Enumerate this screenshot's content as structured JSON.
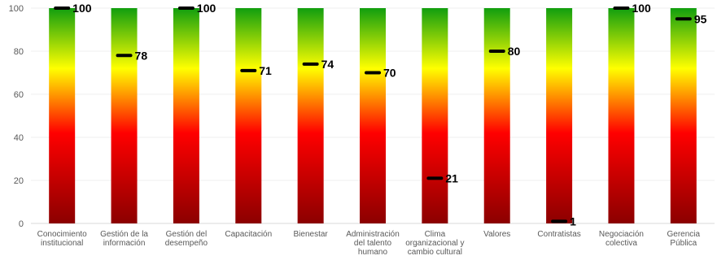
{
  "chart_data": {
    "type": "bar",
    "categories": [
      [
        "Conocimiento",
        "institucional"
      ],
      [
        "Gestión de la",
        "información"
      ],
      [
        "Gestión del",
        "desempeño"
      ],
      [
        "Capacitación"
      ],
      [
        "Bienestar"
      ],
      [
        "Administración",
        "del talento",
        "humano"
      ],
      [
        "Clima",
        "organizacional y",
        "cambio cultural"
      ],
      [
        "Valores"
      ],
      [
        "Contratistas"
      ],
      [
        "Negociación",
        "colectiva"
      ],
      [
        "Gerencia",
        "Pública"
      ]
    ],
    "values": [
      100,
      78,
      100,
      71,
      74,
      70,
      21,
      80,
      1,
      100,
      95
    ],
    "bar_range": [
      0,
      100
    ],
    "ylim": [
      0,
      100
    ],
    "yticks": [
      0,
      20,
      40,
      60,
      80,
      100
    ],
    "grid": true,
    "legend": "none",
    "gradient_colors": {
      "bottom": "#8b0000",
      "low": "#ff0000",
      "mid": "#ffff00",
      "top": "#119e0f"
    },
    "marker_color": "#000000"
  }
}
